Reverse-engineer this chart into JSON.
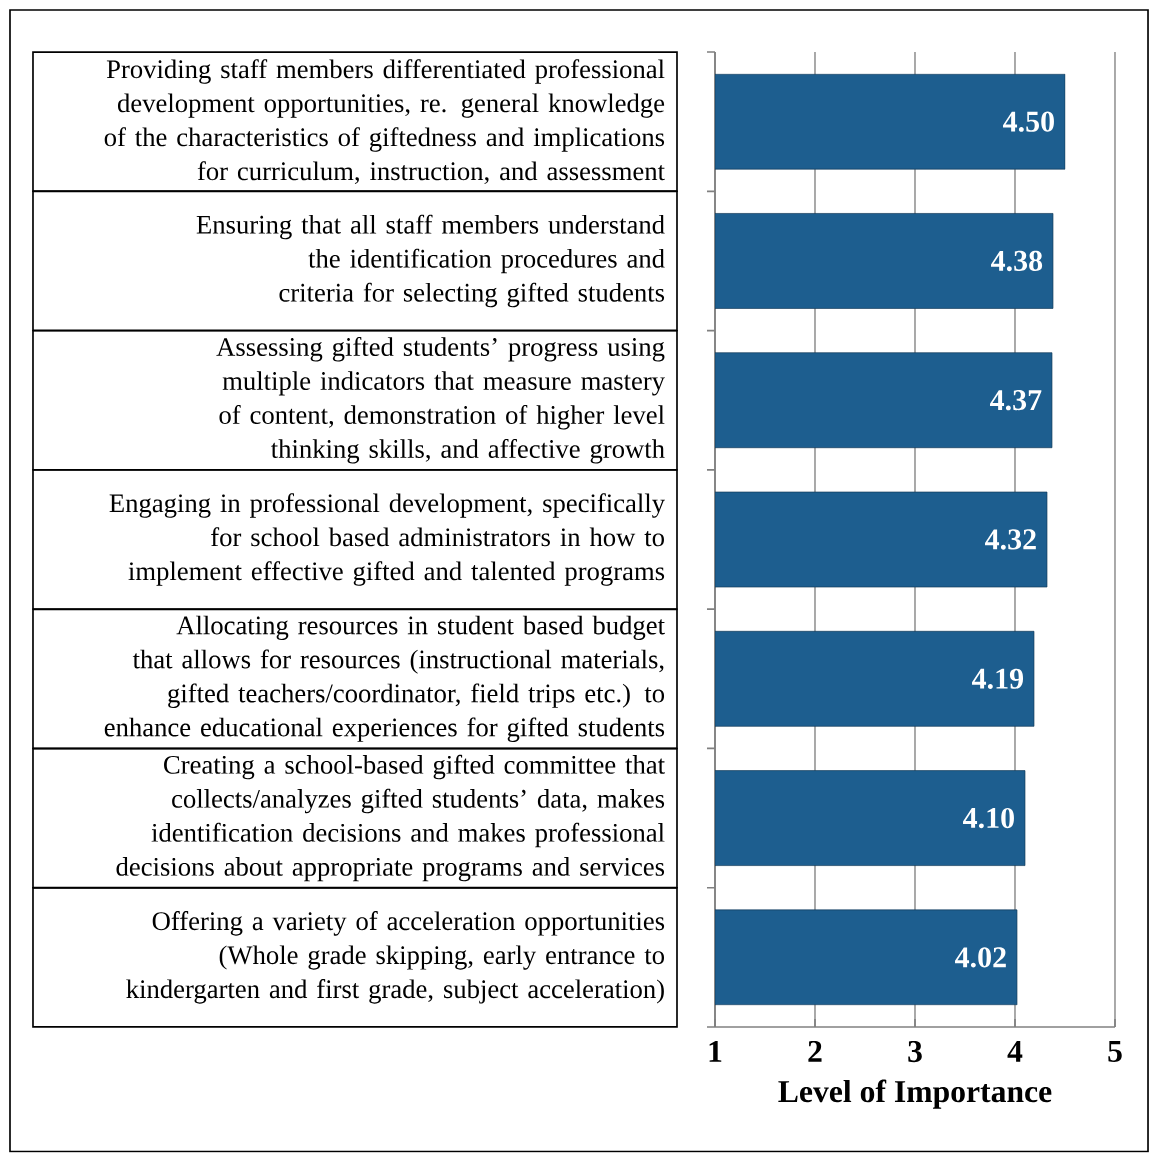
{
  "chart_data": {
    "type": "bar",
    "orientation": "horizontal",
    "xlabel": "Level of Importance",
    "categories": [
      "Providing staff members differentiated professional development opportunities, re. general knowledge of the characteristics of giftedness and implications for curriculum, instruction, and assessment",
      "Ensuring that all staff members understand the identification procedures and criteria for selecting gifted students",
      "Assessing gifted students’ progress using multiple indicators that measure mastery of content, demonstration of higher level thinking skills, and affective growth",
      "Engaging in professional development, specifically for school based administrators in how to implement effective gifted and talented programs",
      "Allocating resources in student based budget that allows for resources (instructional materials, gifted teachers/coordinator, field trips etc.) to enhance educational experiences for gifted students",
      "Creating a school-based gifted committee that collects/analyzes gifted students’ data, makes identification decisions and makes professional decisions about appropriate programs and services",
      "Offering a variety of acceleration opportunities (Whole grade skipping, early entrance to kindergarten and first grade, subject acceleration)"
    ],
    "values": [
      4.5,
      4.38,
      4.37,
      4.32,
      4.19,
      4.1,
      4.02
    ],
    "value_labels": [
      "4.50",
      "4.38",
      "4.37",
      "4.32",
      "4.19",
      "4.10",
      "4.02"
    ],
    "color": "#1d5e8f",
    "xlim": [
      1,
      5
    ],
    "xticks": [
      1,
      2,
      3,
      4,
      5
    ],
    "grid": "x"
  }
}
